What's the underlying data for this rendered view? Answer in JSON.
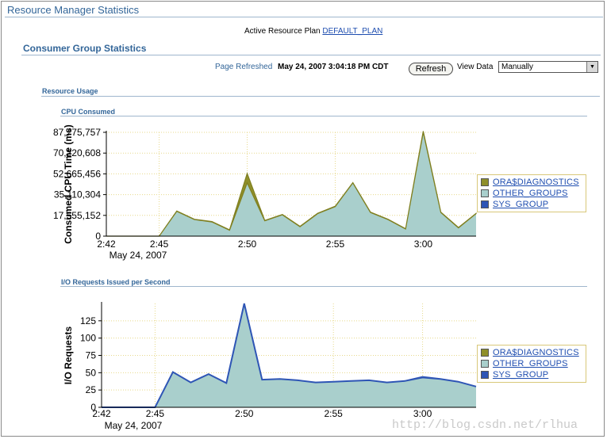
{
  "page": {
    "title": "Resource Manager Statistics",
    "active_plan_label": "Active Resource Plan",
    "active_plan_value": "DEFAULT_PLAN",
    "section_title": "Consumer Group Statistics",
    "refreshed_label": "Page Refreshed",
    "refreshed_time": "May 24, 2007 3:04:18 PM CDT",
    "refresh_button": "Refresh",
    "view_data_label": "View Data",
    "view_data_value": "Manually",
    "resource_usage": "Resource Usage",
    "watermark": "http://blog.csdn.net/rlhua"
  },
  "legend": {
    "items": [
      {
        "label": "ORA$DIAGNOSTICS",
        "color": "#8f8f2a"
      },
      {
        "label": "OTHER_GROUPS",
        "color": "#a9cfcc"
      },
      {
        "label": "SYS_GROUP",
        "color": "#2e55b5"
      }
    ]
  },
  "chart_data": [
    {
      "type": "area",
      "title": "CPU Consumed",
      "ylabel": "Consumed CPU Time (ms)",
      "xlabel": "",
      "x_ticks": [
        "2:42",
        "2:45",
        "2:50",
        "2:55",
        "3:00"
      ],
      "x_sublabel": "May 24, 2007",
      "y_ticks": [
        "0",
        "17,555,152",
        "35,110,304",
        "52,665,456",
        "70,220,608",
        "87,775,757"
      ],
      "ylim": [
        0,
        87775757
      ],
      "x": [
        "2:42",
        "2:43",
        "2:44",
        "2:45",
        "2:46",
        "2:47",
        "2:48",
        "2:49",
        "2:50",
        "2:51",
        "2:52",
        "2:53",
        "2:54",
        "2:55",
        "2:56",
        "2:57",
        "2:58",
        "2:59",
        "3:00",
        "3:01",
        "3:02",
        "3:03"
      ],
      "series": [
        {
          "name": "OTHER_GROUPS",
          "values": [
            0,
            0,
            0,
            0,
            21000000,
            14000000,
            12000000,
            5000000,
            45000000,
            13000000,
            18000000,
            8000000,
            19000000,
            25000000,
            45000000,
            20000000,
            14000000,
            6000000,
            87775757,
            20000000,
            7000000,
            19000000
          ]
        },
        {
          "name": "ORA$DIAGNOSTICS",
          "values": [
            0,
            0,
            0,
            0,
            300000,
            300000,
            300000,
            300000,
            8000000,
            300000,
            300000,
            300000,
            300000,
            300000,
            300000,
            300000,
            300000,
            300000,
            1000000,
            300000,
            300000,
            300000
          ]
        },
        {
          "name": "SYS_GROUP",
          "values": [
            0,
            0,
            0,
            0,
            0,
            0,
            0,
            0,
            0,
            0,
            0,
            0,
            0,
            0,
            0,
            0,
            0,
            0,
            0,
            0,
            0,
            0
          ]
        }
      ],
      "grid": true,
      "legend_position": "right"
    },
    {
      "type": "area",
      "title": "I/O Requests Issued per Second",
      "ylabel": "I/O Requests",
      "xlabel": "",
      "x_ticks": [
        "2:42",
        "2:45",
        "2:50",
        "2:55",
        "3:00"
      ],
      "x_sublabel": "May 24, 2007",
      "y_ticks": [
        "0",
        "25",
        "50",
        "75",
        "100",
        "125"
      ],
      "ylim": [
        0,
        150
      ],
      "x": [
        "2:42",
        "2:43",
        "2:44",
        "2:45",
        "2:46",
        "2:47",
        "2:48",
        "2:49",
        "2:50",
        "2:51",
        "2:52",
        "2:53",
        "2:54",
        "2:55",
        "2:56",
        "2:57",
        "2:58",
        "2:59",
        "3:00",
        "3:01",
        "3:02",
        "3:03"
      ],
      "series": [
        {
          "name": "OTHER_GROUPS",
          "values": [
            0,
            0,
            0,
            0,
            51,
            36,
            48,
            35,
            150,
            40,
            41,
            39,
            36,
            37,
            38,
            39,
            36,
            38,
            43,
            41,
            37,
            30
          ]
        },
        {
          "name": "ORA$DIAGNOSTICS",
          "values": [
            0,
            0,
            0,
            0,
            0,
            0,
            0,
            0,
            0,
            0,
            0,
            0,
            0,
            0,
            0,
            0,
            0,
            0,
            0,
            0,
            0,
            0
          ]
        },
        {
          "name": "SYS_GROUP",
          "values": [
            0,
            0,
            0,
            0,
            0,
            0,
            0,
            0,
            0,
            0,
            0,
            0,
            0,
            0,
            0,
            0,
            0,
            0,
            1,
            0,
            0,
            0
          ]
        }
      ],
      "grid": true,
      "legend_position": "right"
    }
  ]
}
